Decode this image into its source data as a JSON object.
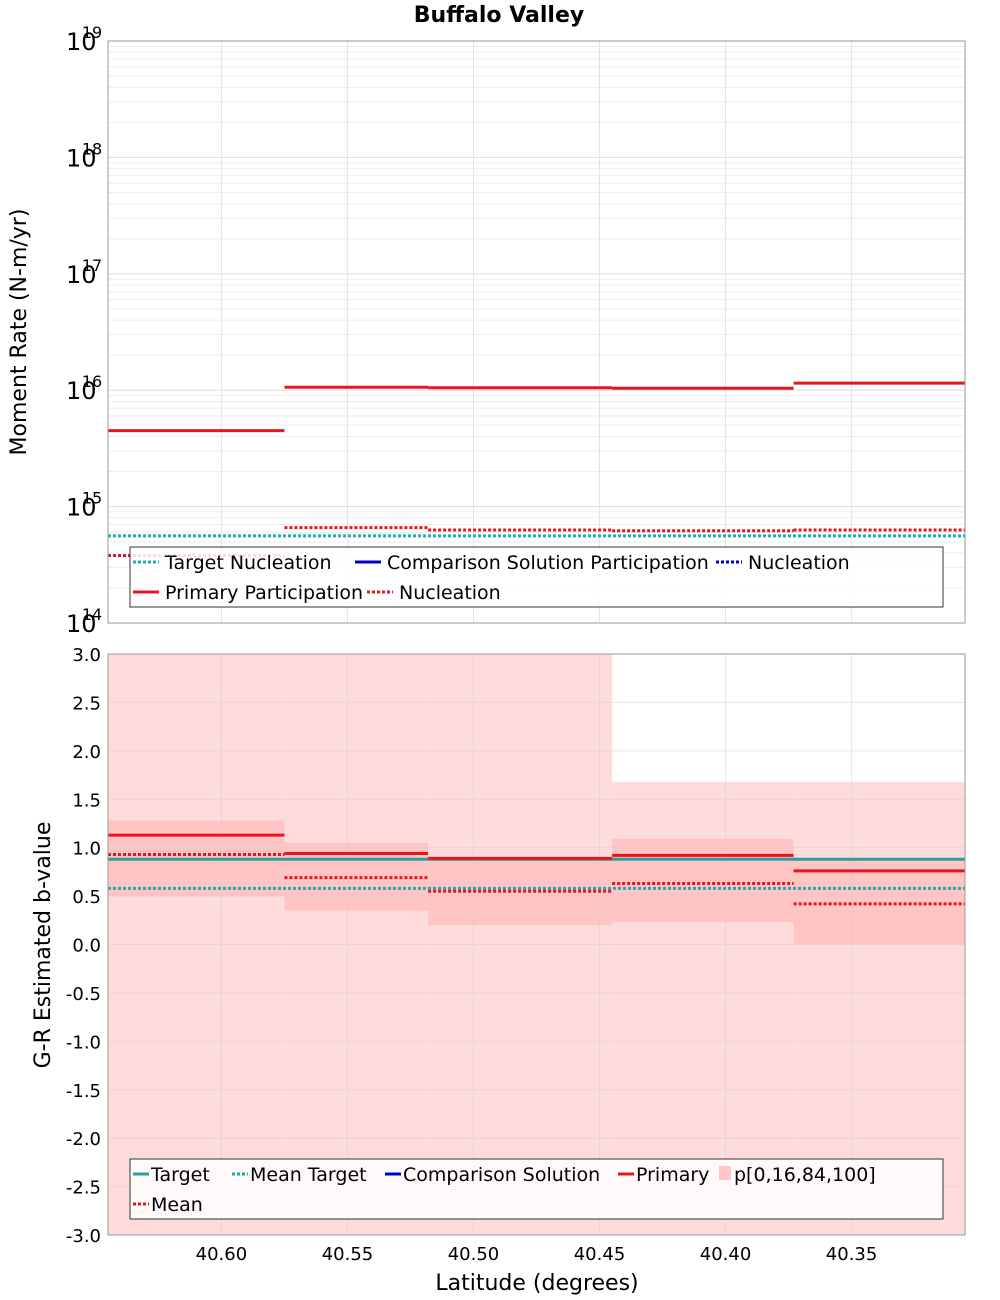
{
  "title": "Buffalo Valley",
  "top_panel": {
    "ylabel": "Moment Rate (N-m/yr)",
    "y_ticks": [
      {
        "base": "10",
        "exp": "19",
        "value": 1e+19
      },
      {
        "base": "10",
        "exp": "18",
        "value": 1e+18
      },
      {
        "base": "10",
        "exp": "17",
        "value": 1e+17
      },
      {
        "base": "10",
        "exp": "16",
        "value": 1e+16
      },
      {
        "base": "10",
        "exp": "15",
        "value": 1000000000000000.0
      },
      {
        "base": "10",
        "exp": "14",
        "value": 100000000000000.0
      }
    ],
    "legend": [
      {
        "label": "Target Nucleation",
        "color": "#1aaeae",
        "style": "dotted"
      },
      {
        "label": "Comparison Solution Participation",
        "color": "#0000cc",
        "style": "solid"
      },
      {
        "label": "Nucleation",
        "color": "#0000cc",
        "style": "dotted"
      },
      {
        "label": "Primary Participation",
        "color": "#e8141e",
        "style": "solid"
      },
      {
        "label": "Nucleation",
        "color": "#e8141e",
        "style": "dotted"
      }
    ]
  },
  "bottom_panel": {
    "ylabel": "G-R Estimated b-value",
    "y_ticks": [
      "3.0",
      "2.5",
      "2.0",
      "1.5",
      "1.0",
      "0.5",
      "0.0",
      "-0.5",
      "-1.0",
      "-1.5",
      "-2.0",
      "-2.5",
      "-3.0"
    ],
    "legend": [
      {
        "label": "Target",
        "color": "#2e9e9e",
        "style": "solid"
      },
      {
        "label": "Mean Target",
        "color": "#1aaeae",
        "style": "dotted"
      },
      {
        "label": "Comparison Solution",
        "color": "#0000cc",
        "style": "solid"
      },
      {
        "label": "Primary",
        "color": "#e8141e",
        "style": "solid"
      },
      {
        "label": "p[0,16,84,100]",
        "color": "#ffc8c8",
        "style": "box"
      },
      {
        "label": "Mean",
        "color": "#e8141e",
        "style": "dotted"
      }
    ]
  },
  "x_axis": {
    "label": "Latitude (degrees)",
    "ticks": [
      "40.60",
      "40.55",
      "40.50",
      "40.45",
      "40.40",
      "40.35"
    ]
  },
  "colors": {
    "primary": "#e8141e",
    "target": "#2e9e9e",
    "target_dotted": "#1aaeae",
    "comparison": "#0000cc",
    "band_outer": "#ffdcdc",
    "band_inner": "#ffc4c4"
  },
  "chart_data": [
    {
      "type": "line",
      "panel": "moment_rate",
      "y_scale": "log",
      "ylim": [
        100000000000000.0,
        1e+19
      ],
      "xlim": [
        40.645,
        40.305
      ],
      "x_reversed": true,
      "segments": [
        {
          "x": [
            40.645,
            40.575
          ],
          "participation": 4500000000000000.0,
          "nucleation": 380000000000000.0
        },
        {
          "x": [
            40.575,
            40.518
          ],
          "participation": 1.06e+16,
          "nucleation": 660000000000000.0
        },
        {
          "x": [
            40.518,
            40.445
          ],
          "participation": 1.05e+16,
          "nucleation": 630000000000000.0
        },
        {
          "x": [
            40.445,
            40.373
          ],
          "participation": 1.04e+16,
          "nucleation": 620000000000000.0
        },
        {
          "x": [
            40.373,
            40.305
          ],
          "participation": 1.15e+16,
          "nucleation": 630000000000000.0
        }
      ],
      "target_nucleation": 560000000000000.0
    },
    {
      "type": "line",
      "panel": "b_value",
      "ylim": [
        -3.0,
        3.0
      ],
      "xlim": [
        40.645,
        40.305
      ],
      "x_reversed": true,
      "target": 0.88,
      "mean_target": 0.58,
      "segments": [
        {
          "x": [
            40.645,
            40.575
          ],
          "primary": 1.13,
          "mean": 0.93,
          "p0": -3.0,
          "p16": 0.5,
          "p84": 1.28,
          "p100": 3.0
        },
        {
          "x": [
            40.575,
            40.518
          ],
          "primary": 0.94,
          "mean": 0.69,
          "p0": -3.0,
          "p16": 0.35,
          "p84": 1.05,
          "p100": 3.0
        },
        {
          "x": [
            40.518,
            40.445
          ],
          "primary": 0.89,
          "mean": 0.55,
          "p0": -3.0,
          "p16": 0.2,
          "p84": 0.9,
          "p100": 3.0
        },
        {
          "x": [
            40.445,
            40.373
          ],
          "primary": 0.92,
          "mean": 0.63,
          "p0": -3.0,
          "p16": 0.23,
          "p84": 1.09,
          "p100": 1.68
        },
        {
          "x": [
            40.373,
            40.305
          ],
          "primary": 0.76,
          "mean": 0.42,
          "p0": -3.0,
          "p16": 0.0,
          "p84": 0.88,
          "p100": 1.68
        }
      ]
    }
  ]
}
